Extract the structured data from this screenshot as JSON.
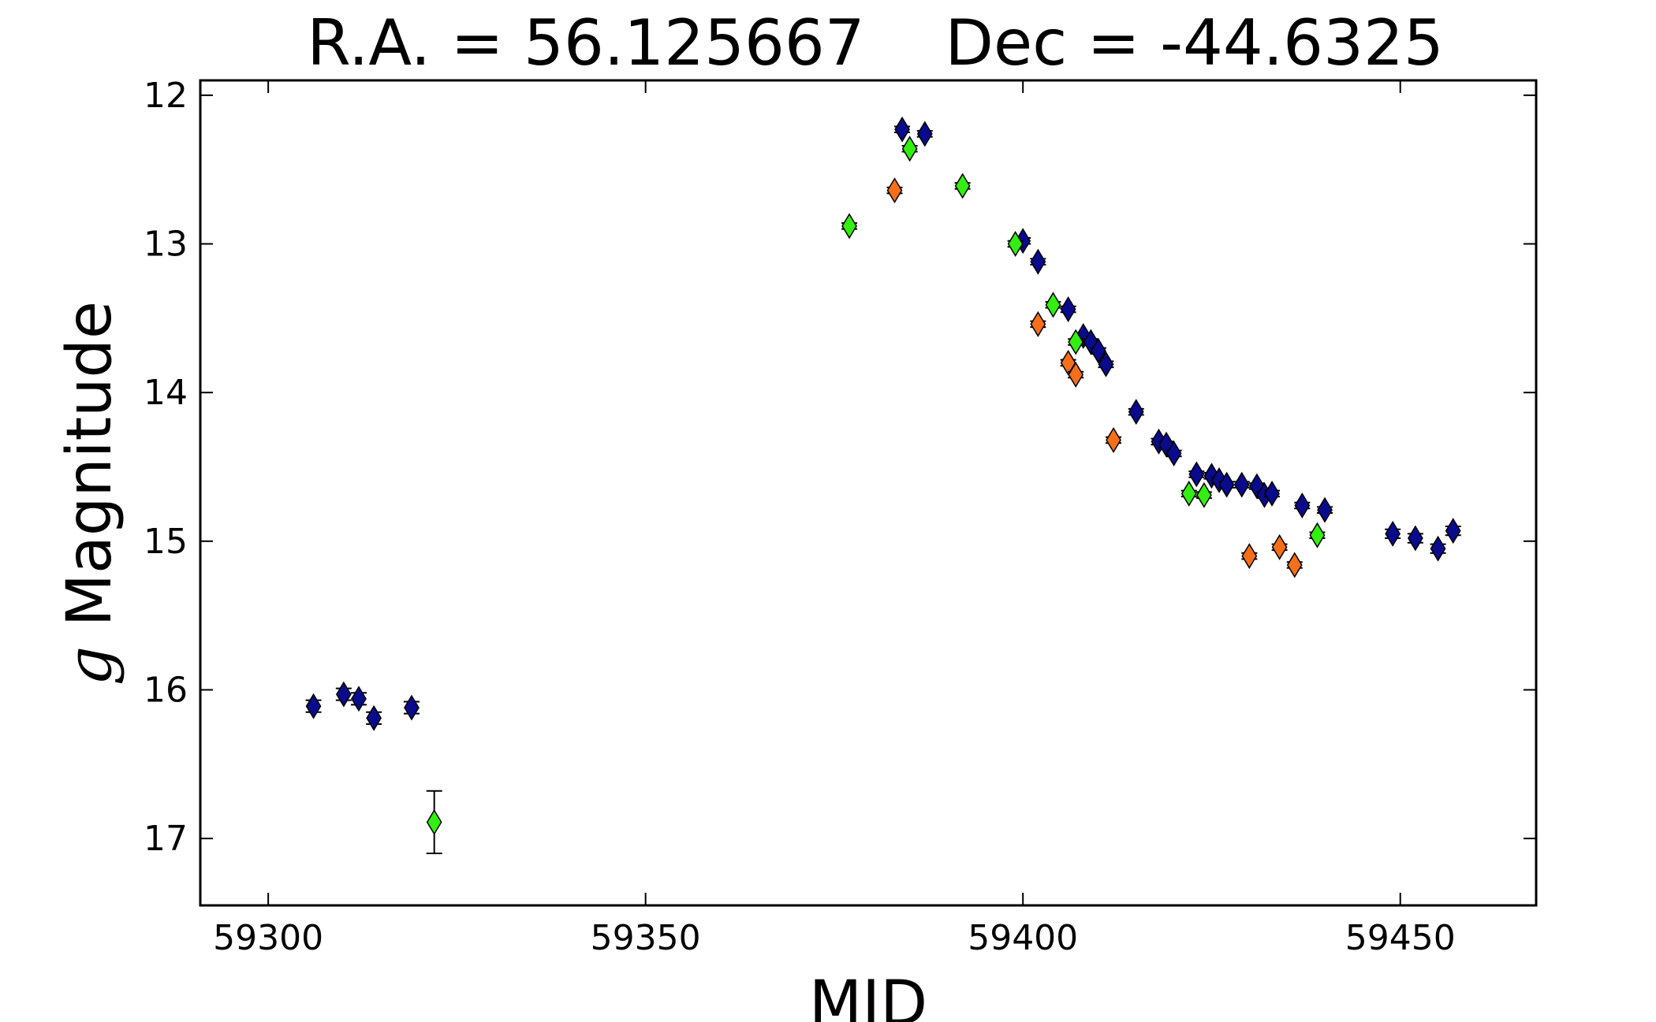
{
  "chart_data": {
    "type": "scatter",
    "title": "R.A. = 56.125667    Dec = -44.6325",
    "xlabel": "MJD",
    "ylabel_prefix": "g",
    "ylabel_rest": " Magnitude",
    "xlim": [
      59291,
      59468
    ],
    "ylim": [
      17.45,
      11.9
    ],
    "y_inverted": true,
    "grid": false,
    "x_ticks": [
      59300,
      59350,
      59400,
      59450
    ],
    "x_tick_labels": [
      "59300",
      "59350",
      "59400",
      "59450"
    ],
    "y_ticks": [
      12,
      13,
      14,
      15,
      16,
      17
    ],
    "y_tick_labels": [
      "12",
      "13",
      "14",
      "15",
      "16",
      "17"
    ],
    "marker": "diamond",
    "series": [
      {
        "color": "#0a0a8c",
        "points": [
          [
            59306,
            16.11,
            0.04
          ],
          [
            59310,
            16.03,
            0.04
          ],
          [
            59312,
            16.06,
            0.04
          ],
          [
            59314,
            16.19,
            0.04
          ],
          [
            59319,
            16.12,
            0.04
          ],
          [
            59384,
            12.23,
            0.02
          ],
          [
            59387,
            12.26,
            0.02
          ],
          [
            59400,
            12.98,
            0.02
          ],
          [
            59402,
            13.12,
            0.02
          ],
          [
            59406,
            13.44,
            0.02
          ],
          [
            59408,
            13.62,
            0.02
          ],
          [
            59409,
            13.66,
            0.02
          ],
          [
            59410,
            13.72,
            0.02
          ],
          [
            59411,
            13.81,
            0.02
          ],
          [
            59415,
            14.13,
            0.02
          ],
          [
            59418,
            14.33,
            0.02
          ],
          [
            59419,
            14.35,
            0.02
          ],
          [
            59420,
            14.41,
            0.02
          ],
          [
            59423,
            14.55,
            0.02
          ],
          [
            59425,
            14.56,
            0.02
          ],
          [
            59426,
            14.59,
            0.02
          ],
          [
            59427,
            14.62,
            0.02
          ],
          [
            59429,
            14.62,
            0.02
          ],
          [
            59431,
            14.63,
            0.02
          ],
          [
            59432,
            14.69,
            0.02
          ],
          [
            59433,
            14.68,
            0.02
          ],
          [
            59437,
            14.76,
            0.02
          ],
          [
            59440,
            14.79,
            0.02
          ],
          [
            59449,
            14.95,
            0.03
          ],
          [
            59452,
            14.98,
            0.03
          ],
          [
            59455,
            15.05,
            0.03
          ],
          [
            59457,
            14.93,
            0.03
          ]
        ]
      },
      {
        "color": "#33ee11",
        "points": [
          [
            59322,
            16.89,
            0.21
          ],
          [
            59377,
            12.88,
            0.02
          ],
          [
            59385,
            12.36,
            0.02
          ],
          [
            59392,
            12.61,
            0.02
          ],
          [
            59399,
            13.0,
            0.02
          ],
          [
            59404,
            13.41,
            0.02
          ],
          [
            59407,
            13.66,
            0.02
          ],
          [
            59422,
            14.68,
            0.02
          ],
          [
            59424,
            14.69,
            0.02
          ],
          [
            59439,
            14.96,
            0.02
          ]
        ]
      },
      {
        "color": "#f56f1a",
        "points": [
          [
            59383,
            12.64,
            0.02
          ],
          [
            59402,
            13.54,
            0.02
          ],
          [
            59406,
            13.8,
            0.02
          ],
          [
            59407,
            13.88,
            0.02
          ],
          [
            59412,
            14.32,
            0.02
          ],
          [
            59430,
            15.1,
            0.02
          ],
          [
            59434,
            15.04,
            0.02
          ],
          [
            59436,
            15.16,
            0.02
          ]
        ]
      }
    ]
  }
}
